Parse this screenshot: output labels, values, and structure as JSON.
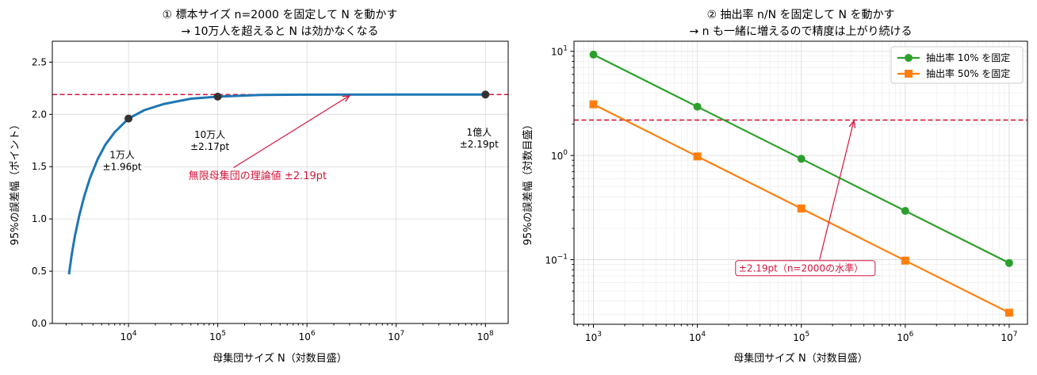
{
  "chart_data": [
    {
      "type": "line",
      "title_lines": [
        "① 標本サイズ n=2000 を固定して N を動かす",
        "→ 10万人を超えると N は効かなくなる"
      ],
      "xlabel": "母集団サイズ N（対数目盛）",
      "ylabel": "95%の誤差幅（ポイント）",
      "x_scale": "log",
      "xlim": [
        1400,
        180000000
      ],
      "ylim": [
        0,
        2.7
      ],
      "xticks": [
        10000,
        100000,
        1000000,
        10000000,
        100000000
      ],
      "xtick_labels": [
        [
          "10",
          "4"
        ],
        [
          "10",
          "5"
        ],
        [
          "10",
          "6"
        ],
        [
          "10",
          "7"
        ],
        [
          "10",
          "8"
        ]
      ],
      "yticks": [
        0,
        0.5,
        1.0,
        1.5,
        2.0,
        2.5
      ],
      "ytick_labels": [
        "0.0",
        "0.5",
        "1.0",
        "1.5",
        "2.0",
        "2.5"
      ],
      "grid": true,
      "curve": {
        "x": [
          2150,
          2300,
          2500,
          2800,
          3200,
          3700,
          4500,
          5500,
          7000,
          10000,
          15000,
          25000,
          50000,
          100000,
          300000,
          1000000,
          10000000,
          100000000
        ],
        "y": [
          0.47,
          0.65,
          0.83,
          1.03,
          1.22,
          1.39,
          1.57,
          1.71,
          1.83,
          1.96,
          2.04,
          2.1,
          2.15,
          2.17,
          2.186,
          2.189,
          2.19,
          2.19
        ],
        "color": "#1f77b4"
      },
      "points": {
        "x": [
          10000,
          100000,
          100000000
        ],
        "y": [
          1.96,
          2.17,
          2.19
        ],
        "color": "#333333"
      },
      "reference_line": {
        "y": 2.19,
        "color": "#d6163d",
        "style": "dashed"
      },
      "point_labels": [
        {
          "lines": [
            "1万人",
            "±1.96pt"
          ],
          "x": 10000,
          "y": 1.96
        },
        {
          "lines": [
            "10万人",
            "±2.17pt"
          ],
          "x": 100000,
          "y": 2.17
        },
        {
          "lines": [
            "1億人",
            "±2.19pt"
          ],
          "x": 100000000,
          "y": 2.19
        }
      ],
      "arrow_annotation": {
        "text": "無限母集団の理論値 ±2.19pt",
        "text_x": 280000,
        "text_y": 1.38,
        "arrow_from_x": 150000,
        "arrow_from_y": 1.49,
        "arrow_to_x": 3000000,
        "arrow_to_y": 2.18,
        "color": "#d6163d"
      }
    },
    {
      "type": "line",
      "title_lines": [
        "② 抽出率 n/N を固定して N を動かす",
        "→ n も一緒に増えるので精度は上がり続ける"
      ],
      "xlabel": "母集団サイズ N（対数目盛）",
      "ylabel": "95%の誤差幅（対数目盛）",
      "x_scale": "log",
      "y_scale": "log",
      "xlim": [
        650,
        15000000
      ],
      "ylim": [
        0.024,
        12.5
      ],
      "xticks": [
        1000,
        10000,
        100000,
        1000000,
        10000000
      ],
      "xtick_labels": [
        [
          "10",
          "3"
        ],
        [
          "10",
          "4"
        ],
        [
          "10",
          "5"
        ],
        [
          "10",
          "6"
        ],
        [
          "10",
          "7"
        ]
      ],
      "yticks": [
        0.1,
        1,
        10
      ],
      "ytick_labels": [
        [
          "10",
          "−1"
        ],
        [
          "10",
          "0"
        ],
        [
          "10",
          "1"
        ]
      ],
      "grid": true,
      "series": [
        {
          "name": "抽出率 10% を固定",
          "x": [
            1000,
            10000,
            100000,
            1000000,
            10000000
          ],
          "values": [
            9.3,
            2.94,
            0.93,
            0.294,
            0.093
          ],
          "color": "#2ca02c",
          "marker": "circle"
        },
        {
          "name": "抽出率 50% を固定",
          "x": [
            1000,
            10000,
            100000,
            1000000,
            10000000
          ],
          "values": [
            3.1,
            0.98,
            0.31,
            0.098,
            0.031
          ],
          "color": "#ff7f0e",
          "marker": "square"
        }
      ],
      "reference_line": {
        "y": 2.19,
        "color": "#d6163d",
        "style": "dashed"
      },
      "arrow_annotation": {
        "text": "±2.19pt（n=2000の水準）",
        "text_x": 25000,
        "text_y": 0.078,
        "arrow_from_x": 150000,
        "arrow_from_y": 0.1,
        "arrow_to_x": 320000,
        "arrow_to_y": 2.15,
        "color": "#d6163d"
      },
      "legend_position": "top-right"
    }
  ]
}
